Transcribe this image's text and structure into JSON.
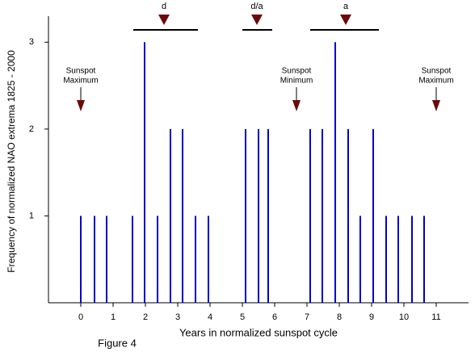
{
  "chart_data": {
    "type": "bar",
    "ylabel": "Frequency of normalized NAO extrema 1825 - 2000",
    "xlabel": "Years in normalized sunspot cycle",
    "caption": "Figure 4",
    "x": [
      0.0,
      0.425,
      0.8,
      1.6,
      1.975,
      2.375,
      2.775,
      3.15,
      3.55,
      3.95,
      5.1,
      5.5,
      5.8,
      7.1,
      7.475,
      7.875,
      8.275,
      8.65,
      9.05,
      9.45,
      9.825,
      10.25,
      10.625
    ],
    "values": [
      1,
      1,
      1,
      1,
      3,
      1,
      2,
      2,
      1,
      1,
      2,
      2,
      2,
      2,
      2,
      3,
      2,
      1,
      2,
      1,
      1,
      1,
      1
    ],
    "color": "#0000cc",
    "xlim": [
      -1,
      12
    ],
    "xticks": [
      0,
      1,
      2,
      3,
      4,
      5,
      6,
      7,
      8,
      9,
      10,
      11
    ],
    "ylim": [
      0,
      3.3
    ],
    "yticks": [
      1,
      2,
      3
    ],
    "marker_color": "#6b0a0a",
    "sunspot_annotations": [
      {
        "lines": [
          "Sunspot",
          "Maximum"
        ],
        "x": 0
      },
      {
        "lines": [
          "Sunspot",
          "Minimum"
        ],
        "x": 6.675
      },
      {
        "lines": [
          "Sunspot",
          "Maximum"
        ],
        "x": 11
      }
    ],
    "phases": [
      {
        "label": "d",
        "range": [
          1.625,
          3.625
        ],
        "marker": 2.575
      },
      {
        "label": "d/a",
        "range": [
          5.0,
          5.925
        ],
        "marker": 5.45
      },
      {
        "label": "a",
        "range": [
          7.1,
          9.225
        ],
        "marker": 8.2
      }
    ]
  }
}
